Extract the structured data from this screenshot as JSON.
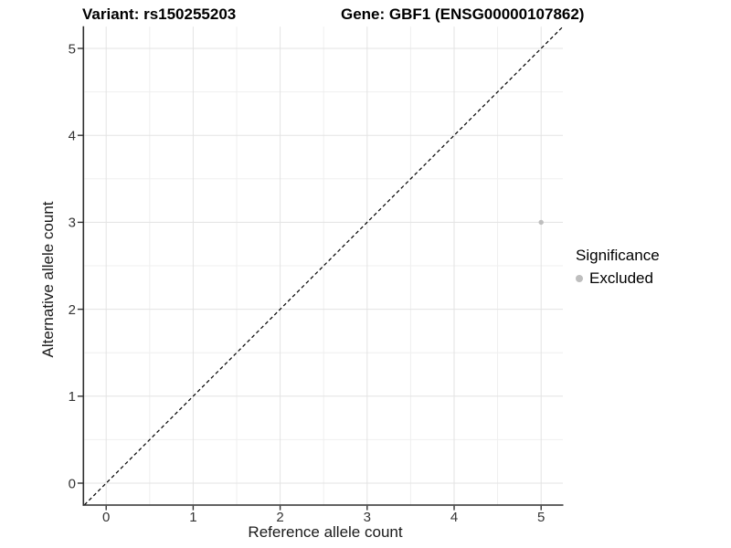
{
  "header": {
    "variant_title": "Variant: rs150255203",
    "gene_title": "Gene: GBF1 (ENSG00000107862)"
  },
  "legend": {
    "title": "Significance",
    "position": "right",
    "items": [
      {
        "label": "Excluded",
        "color": "#bebebe",
        "marker": "circle"
      }
    ]
  },
  "colors": {
    "background": "#ffffff",
    "grid_major": "#e3e3e3",
    "grid_minor": "#efefef",
    "axis_line": "#2e2e2e",
    "tick_mark": "#333333",
    "tick_label": "#333333",
    "point": "#bebebe",
    "identity_line": "#000000"
  },
  "chart_data": {
    "type": "scatter",
    "title": "Variant: rs150255203   Gene: GBF1 (ENSG00000107862)",
    "xlabel": "Reference allele count",
    "ylabel": "Alternative allele count",
    "xlim": [
      -0.25,
      5.25
    ],
    "ylim": [
      -0.25,
      5.25
    ],
    "x_ticks": [
      0,
      1,
      2,
      3,
      4,
      5
    ],
    "y_ticks": [
      0,
      1,
      2,
      3,
      4,
      5
    ],
    "grid": "major and minor, light gray on white",
    "legend_position": "right",
    "identity_line": {
      "style": "dashed",
      "from": [
        -0.25,
        -0.25
      ],
      "to": [
        5.25,
        5.25
      ]
    },
    "series": [
      {
        "name": "Excluded",
        "color": "#bebebe",
        "points": [
          {
            "x": 5,
            "y": 3
          }
        ]
      }
    ]
  }
}
